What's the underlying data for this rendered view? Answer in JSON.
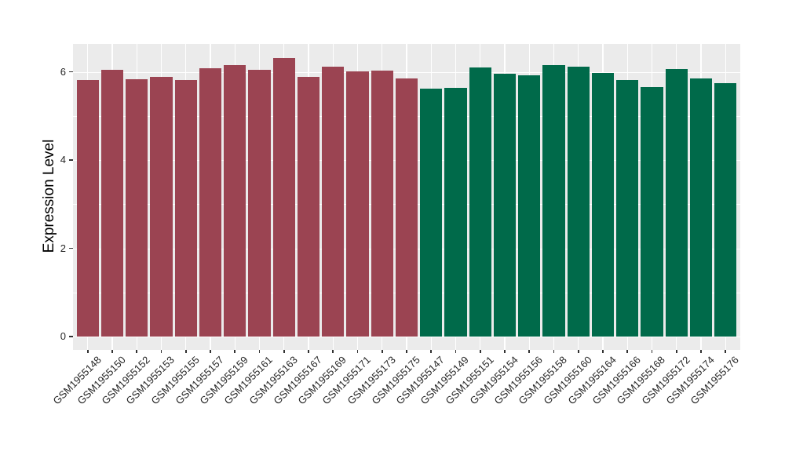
{
  "chart_data": {
    "type": "bar",
    "title": "",
    "xlabel": "",
    "ylabel": "Expression Level",
    "yticks": [
      0,
      2,
      4,
      6
    ],
    "yticks_minor": [
      1,
      3,
      5
    ],
    "ylim": [
      -0.3,
      6.63
    ],
    "grid": "white major horizontal lines at 0,2,4,6, minor at 1,3,5, vertical line at each category, on light gray panel",
    "legend_position": "none",
    "group_colors": {
      "maroon": "#9B4452",
      "green": "#006A4A"
    },
    "bars": [
      {
        "label": "GSM1955148",
        "value": 5.81,
        "group": "maroon"
      },
      {
        "label": "GSM1955150",
        "value": 6.04,
        "group": "maroon"
      },
      {
        "label": "GSM1955152",
        "value": 5.83,
        "group": "maroon"
      },
      {
        "label": "GSM1955153",
        "value": 5.88,
        "group": "maroon"
      },
      {
        "label": "GSM1955155",
        "value": 5.82,
        "group": "maroon"
      },
      {
        "label": "GSM1955157",
        "value": 6.08,
        "group": "maroon"
      },
      {
        "label": "GSM1955159",
        "value": 6.16,
        "group": "maroon"
      },
      {
        "label": "GSM1955161",
        "value": 6.04,
        "group": "maroon"
      },
      {
        "label": "GSM1955163",
        "value": 6.31,
        "group": "maroon"
      },
      {
        "label": "GSM1955167",
        "value": 5.89,
        "group": "maroon"
      },
      {
        "label": "GSM1955169",
        "value": 6.12,
        "group": "maroon"
      },
      {
        "label": "GSM1955171",
        "value": 6.01,
        "group": "maroon"
      },
      {
        "label": "GSM1955173",
        "value": 6.03,
        "group": "maroon"
      },
      {
        "label": "GSM1955175",
        "value": 5.85,
        "group": "maroon"
      },
      {
        "label": "GSM1955147",
        "value": 5.61,
        "group": "green"
      },
      {
        "label": "GSM1955149",
        "value": 5.64,
        "group": "green"
      },
      {
        "label": "GSM1955151",
        "value": 6.1,
        "group": "green"
      },
      {
        "label": "GSM1955154",
        "value": 5.95,
        "group": "green"
      },
      {
        "label": "GSM1955156",
        "value": 5.92,
        "group": "green"
      },
      {
        "label": "GSM1955158",
        "value": 6.16,
        "group": "green"
      },
      {
        "label": "GSM1955160",
        "value": 6.11,
        "group": "green"
      },
      {
        "label": "GSM1955164",
        "value": 5.97,
        "group": "green"
      },
      {
        "label": "GSM1955166",
        "value": 5.81,
        "group": "green"
      },
      {
        "label": "GSM1955168",
        "value": 5.66,
        "group": "green"
      },
      {
        "label": "GSM1955172",
        "value": 6.06,
        "group": "green"
      },
      {
        "label": "GSM1955174",
        "value": 5.85,
        "group": "green"
      },
      {
        "label": "GSM1955176",
        "value": 5.74,
        "group": "green"
      }
    ]
  },
  "style": {
    "page_bg": "#FFFFFF",
    "panel_bg": "#EBEBEB",
    "grid_color": "#FFFFFF",
    "axis_text_color": "#262626",
    "axis_title_color": "#000000",
    "tick_mark_color": "#333333"
  }
}
